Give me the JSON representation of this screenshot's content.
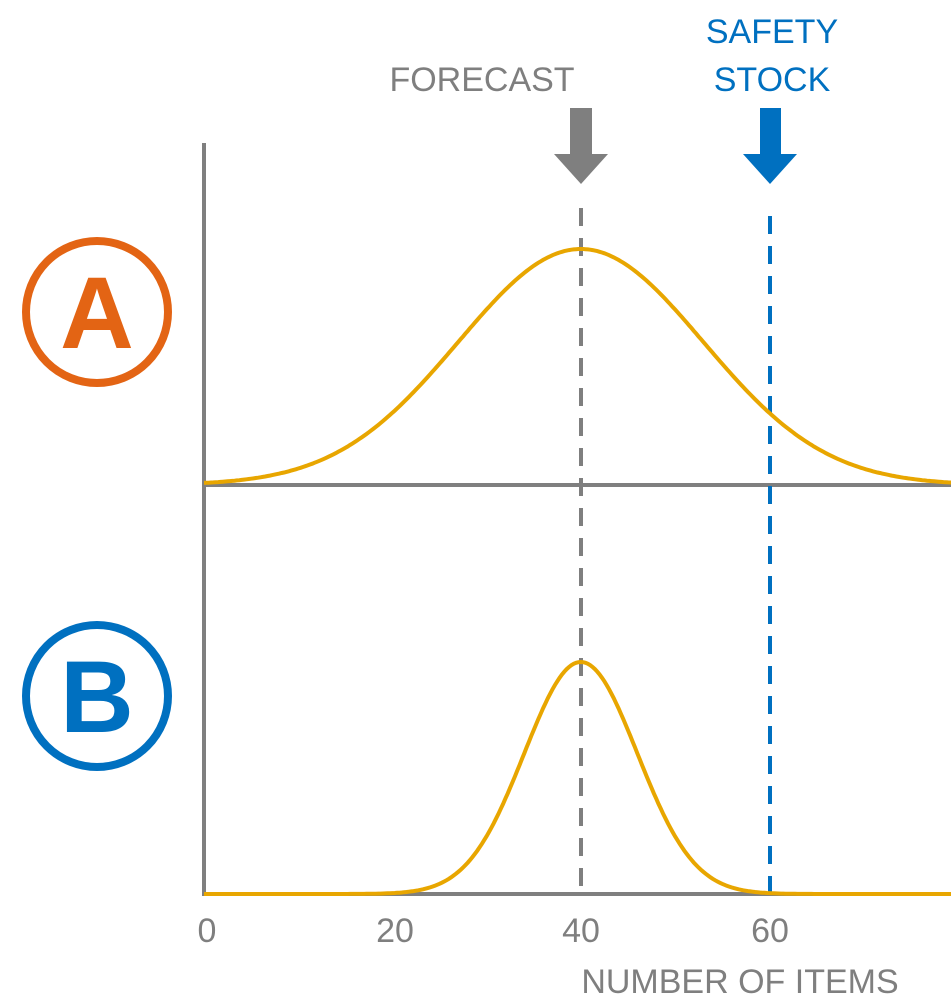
{
  "chart_data": {
    "type": "line",
    "xlabel": "NUMBER OF ITEMS",
    "x_ticks": [
      0,
      20,
      40,
      60
    ],
    "xlim": [
      0,
      80
    ],
    "annotations": {
      "forecast": {
        "text": "FORECAST",
        "x": 40,
        "color": "#7f7f7f"
      },
      "safety_stock": {
        "lines": [
          "SAFETY",
          "STOCK"
        ],
        "x": 60,
        "color": "#0070c0"
      }
    },
    "panels": [
      {
        "label": "A",
        "color": "#e36414",
        "curve": {
          "type": "normal",
          "mean": 40,
          "sd": 13,
          "peak": 1.0
        }
      },
      {
        "label": "B",
        "color": "#0070c0",
        "curve": {
          "type": "normal",
          "mean": 40,
          "sd": 6,
          "peak": 1.0
        }
      }
    ],
    "curve_color": "#e8a600",
    "axis_color": "#7f7f7f",
    "grid": false
  }
}
